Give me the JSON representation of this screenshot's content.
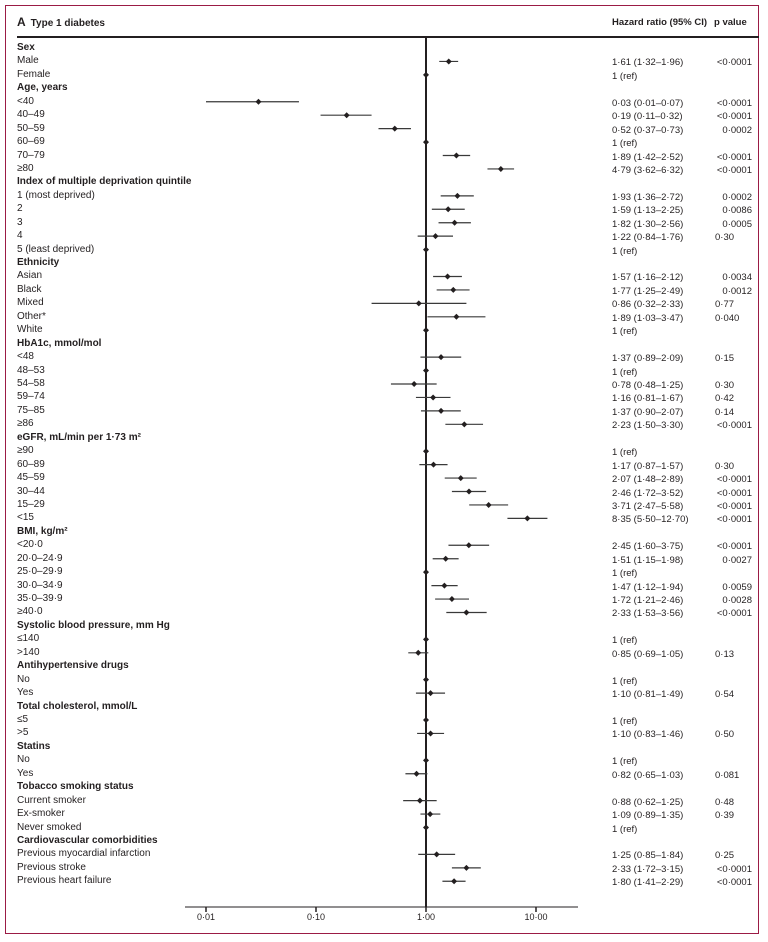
{
  "chart_data": {
    "type": "forest",
    "panel": "A",
    "title": "Type 1 diabetes",
    "columns": {
      "hr": "Hazard ratio (95% CI)",
      "p": "p value"
    },
    "xscale": "log",
    "xlim": [
      0.006,
      15
    ],
    "ticks": [
      {
        "value": 0.01,
        "label": "0·01"
      },
      {
        "value": 0.1,
        "label": "0·10"
      },
      {
        "value": 1,
        "label": "1·00"
      },
      {
        "value": 10,
        "label": "10·00"
      }
    ],
    "rows": [
      {
        "label": "Sex",
        "header": true
      },
      {
        "label": "Male",
        "hr": 1.61,
        "lo": 1.32,
        "hi": 1.96,
        "text": "1·61 (1·32–1·96)",
        "p": "<0·0001"
      },
      {
        "label": "Female",
        "hr": 1,
        "ref": true,
        "text": "1 (ref)"
      },
      {
        "label": "Age, years",
        "header": true
      },
      {
        "label": "<40",
        "hr": 0.03,
        "lo": 0.01,
        "hi": 0.07,
        "text": "0·03 (0·01–0·07)",
        "p": "<0·0001"
      },
      {
        "label": "40–49",
        "hr": 0.19,
        "lo": 0.11,
        "hi": 0.32,
        "text": "0·19 (0·11–0·32)",
        "p": "<0·0001"
      },
      {
        "label": "50–59",
        "hr": 0.52,
        "lo": 0.37,
        "hi": 0.73,
        "text": "0·52 (0·37–0·73)",
        "p": "0·0002"
      },
      {
        "label": "60–69",
        "hr": 1,
        "ref": true,
        "text": "1 (ref)"
      },
      {
        "label": "70–79",
        "hr": 1.89,
        "lo": 1.42,
        "hi": 2.52,
        "text": "1·89 (1·42–2·52)",
        "p": "<0·0001"
      },
      {
        "label": "≥80",
        "hr": 4.79,
        "lo": 3.62,
        "hi": 6.32,
        "text": "4·79 (3·62–6·32)",
        "p": "<0·0001"
      },
      {
        "label": "Index of multiple deprivation quintile",
        "header": true
      },
      {
        "label": "1 (most deprived)",
        "hr": 1.93,
        "lo": 1.36,
        "hi": 2.72,
        "text": "1·93 (1·36–2·72)",
        "p": "0·0002"
      },
      {
        "label": "2",
        "hr": 1.59,
        "lo": 1.13,
        "hi": 2.25,
        "text": "1·59 (1·13–2·25)",
        "p": "0·0086"
      },
      {
        "label": "3",
        "hr": 1.82,
        "lo": 1.3,
        "hi": 2.56,
        "text": "1·82 (1·30–2·56)",
        "p": "0·0005"
      },
      {
        "label": "4",
        "hr": 1.22,
        "lo": 0.84,
        "hi": 1.76,
        "text": "1·22 (0·84–1·76)",
        "p": "0·30"
      },
      {
        "label": "5 (least deprived)",
        "hr": 1,
        "ref": true,
        "text": "1 (ref)"
      },
      {
        "label": "Ethnicity",
        "header": true
      },
      {
        "label": "Asian",
        "hr": 1.57,
        "lo": 1.16,
        "hi": 2.12,
        "text": "1·57 (1·16–2·12)",
        "p": "0·0034"
      },
      {
        "label": "Black",
        "hr": 1.77,
        "lo": 1.25,
        "hi": 2.49,
        "text": "1·77 (1·25–2·49)",
        "p": "0·0012"
      },
      {
        "label": "Mixed",
        "hr": 0.86,
        "lo": 0.32,
        "hi": 2.33,
        "text": "0·86 (0·32–2·33)",
        "p": "0·77"
      },
      {
        "label": "Other*",
        "hr": 1.89,
        "lo": 1.03,
        "hi": 3.47,
        "text": "1·89 (1·03–3·47)",
        "p": "0·040"
      },
      {
        "label": "White",
        "hr": 1,
        "ref": true,
        "text": "1 (ref)"
      },
      {
        "label": "HbA1c, mmol/mol",
        "header": true
      },
      {
        "label": "<48",
        "hr": 1.37,
        "lo": 0.89,
        "hi": 2.09,
        "text": "1·37 (0·89–2·09)",
        "p": "0·15"
      },
      {
        "label": "48–53",
        "hr": 1,
        "ref": true,
        "text": "1 (ref)"
      },
      {
        "label": "54–58",
        "hr": 0.78,
        "lo": 0.48,
        "hi": 1.25,
        "text": "0·78 (0·48–1·25)",
        "p": "0·30"
      },
      {
        "label": "59–74",
        "hr": 1.16,
        "lo": 0.81,
        "hi": 1.67,
        "text": "1·16 (0·81–1·67)",
        "p": "0·42"
      },
      {
        "label": "75–85",
        "hr": 1.37,
        "lo": 0.9,
        "hi": 2.07,
        "text": "1·37 (0·90–2·07)",
        "p": "0·14"
      },
      {
        "label": "≥86",
        "hr": 2.23,
        "lo": 1.5,
        "hi": 3.3,
        "text": "2·23 (1·50–3·30)",
        "p": "<0·0001"
      },
      {
        "label": "eGFR, mL/min per 1·73 m²",
        "header": true
      },
      {
        "label": "≥90",
        "hr": 1,
        "ref": true,
        "text": "1 (ref)"
      },
      {
        "label": "60–89",
        "hr": 1.17,
        "lo": 0.87,
        "hi": 1.57,
        "text": "1·17 (0·87–1·57)",
        "p": "0·30"
      },
      {
        "label": "45–59",
        "hr": 2.07,
        "lo": 1.48,
        "hi": 2.89,
        "text": "2·07 (1·48–2·89)",
        "p": "<0·0001"
      },
      {
        "label": "30–44",
        "hr": 2.46,
        "lo": 1.72,
        "hi": 3.52,
        "text": "2·46 (1·72–3·52)",
        "p": "<0·0001"
      },
      {
        "label": "15–29",
        "hr": 3.71,
        "lo": 2.47,
        "hi": 5.58,
        "text": "3·71 (2·47–5·58)",
        "p": "<0·0001"
      },
      {
        "label": "<15",
        "hr": 8.35,
        "lo": 5.5,
        "hi": 12.7,
        "text": "8·35 (5·50–12·70)",
        "p": "<0·0001"
      },
      {
        "label": "BMI, kg/m²",
        "header": true
      },
      {
        "label": "<20·0",
        "hr": 2.45,
        "lo": 1.6,
        "hi": 3.75,
        "text": "2·45 (1·60–3·75)",
        "p": "<0·0001"
      },
      {
        "label": "20·0–24·9",
        "hr": 1.51,
        "lo": 1.15,
        "hi": 1.98,
        "text": "1·51 (1·15–1·98)",
        "p": "0·0027"
      },
      {
        "label": "25·0–29·9",
        "hr": 1,
        "ref": true,
        "text": "1 (ref)"
      },
      {
        "label": "30·0–34·9",
        "hr": 1.47,
        "lo": 1.12,
        "hi": 1.94,
        "text": "1·47 (1·12–1·94)",
        "p": "0·0059"
      },
      {
        "label": "35·0–39·9",
        "hr": 1.72,
        "lo": 1.21,
        "hi": 2.46,
        "text": "1·72 (1·21–2·46)",
        "p": "0·0028"
      },
      {
        "label": "≥40·0",
        "hr": 2.33,
        "lo": 1.53,
        "hi": 3.56,
        "text": "2·33 (1·53–3·56)",
        "p": "<0·0001"
      },
      {
        "label": "Systolic blood pressure, mm Hg",
        "header": true
      },
      {
        "label": "≤140",
        "hr": 1,
        "ref": true,
        "text": "1 (ref)"
      },
      {
        "label": ">140",
        "hr": 0.85,
        "lo": 0.69,
        "hi": 1.05,
        "text": "0·85 (0·69–1·05)",
        "p": "0·13"
      },
      {
        "label": "Antihypertensive drugs",
        "header": true
      },
      {
        "label": "No",
        "hr": 1,
        "ref": true,
        "text": "1 (ref)"
      },
      {
        "label": "Yes",
        "hr": 1.1,
        "lo": 0.81,
        "hi": 1.49,
        "text": "1·10 (0·81–1·49)",
        "p": "0·54"
      },
      {
        "label": "Total cholesterol, mmol/L",
        "header": true
      },
      {
        "label": "≤5",
        "hr": 1,
        "ref": true,
        "text": "1 (ref)"
      },
      {
        "label": ">5",
        "hr": 1.1,
        "lo": 0.83,
        "hi": 1.46,
        "text": "1·10 (0·83–1·46)",
        "p": "0·50"
      },
      {
        "label": "Statins",
        "header": true
      },
      {
        "label": "No",
        "hr": 1,
        "ref": true,
        "text": "1 (ref)"
      },
      {
        "label": "Yes",
        "hr": 0.82,
        "lo": 0.65,
        "hi": 1.03,
        "text": "0·82 (0·65–1·03)",
        "p": "0·081"
      },
      {
        "label": "Tobacco smoking status",
        "header": true
      },
      {
        "label": "Current smoker",
        "hr": 0.88,
        "lo": 0.62,
        "hi": 1.25,
        "text": "0·88 (0·62–1·25)",
        "p": "0·48"
      },
      {
        "label": "Ex-smoker",
        "hr": 1.09,
        "lo": 0.89,
        "hi": 1.35,
        "text": "1·09 (0·89–1·35)",
        "p": "0·39"
      },
      {
        "label": "Never smoked",
        "hr": 1,
        "ref": true,
        "text": "1 (ref)"
      },
      {
        "label": "Cardiovascular comorbidities",
        "header": true
      },
      {
        "label": "Previous myocardial infarction",
        "hr": 1.25,
        "lo": 0.85,
        "hi": 1.84,
        "text": "1·25 (0·85–1·84)",
        "p": "0·25"
      },
      {
        "label": "Previous stroke",
        "hr": 2.33,
        "lo": 1.72,
        "hi": 3.15,
        "text": "2·33 (1·72–3·15)",
        "p": "<0·0001"
      },
      {
        "label": "Previous heart failure",
        "hr": 1.8,
        "lo": 1.41,
        "hi": 2.29,
        "text": "1·80 (1·41–2·29)",
        "p": "<0·0001"
      }
    ]
  }
}
